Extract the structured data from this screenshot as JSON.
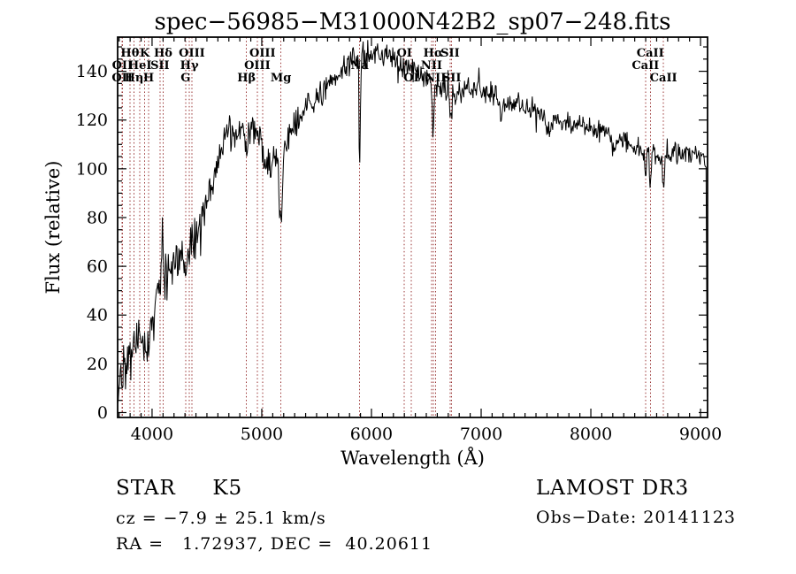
{
  "title": "spec−56985−M31000N42B2_sp07−248.fits",
  "footer": {
    "classification": "STAR     K5",
    "cz": "cz = −7.9 ± 25.1 km/s",
    "ra_dec": "RA =   1.72937, DEC =  40.20611",
    "survey": "LAMOST DR3",
    "obs_date": "Obs−Date: 20141123"
  },
  "chart_data": {
    "type": "line",
    "title": "spec−56985−M31000N42B2_sp07−248.fits",
    "xlabel": "Wavelength (Å)",
    "ylabel": "Flux (relative)",
    "xlim": [
      3686,
      9064
    ],
    "ylim": [
      -2,
      154
    ],
    "grid": false,
    "x_major_ticks": [
      4000,
      5000,
      6000,
      7000,
      8000,
      9000
    ],
    "x_tick_labels": [
      "4000",
      "5000",
      "6000",
      "7000",
      "8000",
      "9000"
    ],
    "x_minor_step": 100,
    "y_major_ticks": [
      0,
      20,
      40,
      60,
      80,
      100,
      120,
      140
    ],
    "y_tick_labels": [
      "0",
      "20",
      "40",
      "60",
      "80",
      "100",
      "120",
      "140"
    ],
    "y_minor_step": 5,
    "spectrum_color": "#000000",
    "line_marker_color": "#993333",
    "sample_step_angstrom": 6,
    "noise_seed": 42,
    "noise_regions": [
      [
        3950,
        8
      ],
      [
        4400,
        7
      ],
      [
        5200,
        5.5
      ],
      [
        6200,
        4.2
      ],
      [
        7200,
        3.8
      ],
      [
        10000,
        3.3
      ]
    ],
    "continuum_envelope": [
      [
        3686,
        3
      ],
      [
        3705,
        16
      ],
      [
        3740,
        20
      ],
      [
        3800,
        24
      ],
      [
        3860,
        28
      ],
      [
        3920,
        32
      ],
      [
        3980,
        36
      ],
      [
        4020,
        42
      ],
      [
        4060,
        50
      ],
      [
        4110,
        57
      ],
      [
        4160,
        60
      ],
      [
        4220,
        64
      ],
      [
        4280,
        66
      ],
      [
        4340,
        70
      ],
      [
        4400,
        73
      ],
      [
        4450,
        79
      ],
      [
        4500,
        87
      ],
      [
        4560,
        97
      ],
      [
        4620,
        107
      ],
      [
        4680,
        113
      ],
      [
        4740,
        114
      ],
      [
        4800,
        115
      ],
      [
        4860,
        116
      ],
      [
        4920,
        116
      ],
      [
        4980,
        113
      ],
      [
        5040,
        109
      ],
      [
        5100,
        106
      ],
      [
        5160,
        104
      ],
      [
        5220,
        110
      ],
      [
        5280,
        116
      ],
      [
        5340,
        120
      ],
      [
        5400,
        124
      ],
      [
        5480,
        128
      ],
      [
        5560,
        132
      ],
      [
        5650,
        136
      ],
      [
        5750,
        141
      ],
      [
        5850,
        145
      ],
      [
        5950,
        147
      ],
      [
        6050,
        148
      ],
      [
        6150,
        146
      ],
      [
        6250,
        144
      ],
      [
        6350,
        141
      ],
      [
        6450,
        139
      ],
      [
        6550,
        136
      ],
      [
        6650,
        133
      ],
      [
        6750,
        131
      ],
      [
        6850,
        132
      ],
      [
        6950,
        133
      ],
      [
        7050,
        131
      ],
      [
        7150,
        129
      ],
      [
        7250,
        128
      ],
      [
        7350,
        127
      ],
      [
        7450,
        125
      ],
      [
        7550,
        123
      ],
      [
        7650,
        121
      ],
      [
        7750,
        120
      ],
      [
        7850,
        118
      ],
      [
        7950,
        117
      ],
      [
        8050,
        116
      ],
      [
        8150,
        114
      ],
      [
        8250,
        112
      ],
      [
        8350,
        111
      ],
      [
        8450,
        108
      ],
      [
        8550,
        106
      ],
      [
        8650,
        105
      ],
      [
        8750,
        106
      ],
      [
        8850,
        107
      ],
      [
        8950,
        106
      ],
      [
        9030,
        105
      ],
      [
        9052,
        100
      ],
      [
        9057,
        40
      ],
      [
        9062,
        10
      ]
    ],
    "absorption_features": [
      {
        "center": 3933,
        "depth": 10,
        "sigma": 10
      },
      {
        "center": 3968,
        "depth": 9,
        "sigma": 10
      },
      {
        "center": 4101,
        "depth": 7,
        "sigma": 9
      },
      {
        "center": 4305,
        "depth": 15,
        "sigma": 16
      },
      {
        "center": 4340,
        "depth": 7,
        "sigma": 9
      },
      {
        "center": 4861,
        "depth": 13,
        "sigma": 8
      },
      {
        "center": 5065,
        "depth": 7,
        "sigma": 35
      },
      {
        "center": 5175,
        "depth": 28,
        "sigma": 13
      },
      {
        "center": 5893,
        "depth": 48,
        "sigma": 6
      },
      {
        "center": 6563,
        "depth": 20,
        "sigma": 8
      },
      {
        "center": 6717,
        "depth": 9,
        "sigma": 9
      },
      {
        "center": 6731,
        "depth": 9,
        "sigma": 9
      },
      {
        "center": 7190,
        "depth": 6,
        "sigma": 22
      },
      {
        "center": 7620,
        "depth": 6,
        "sigma": 25
      },
      {
        "center": 8205,
        "depth": 5,
        "sigma": 10
      },
      {
        "center": 8498,
        "depth": 11,
        "sigma": 7
      },
      {
        "center": 8542,
        "depth": 13,
        "sigma": 7
      },
      {
        "center": 8662,
        "depth": 12,
        "sigma": 7
      }
    ],
    "artifact_spike": {
      "center": 4095,
      "height": 32,
      "sigma": 4
    },
    "spectral_lines": [
      {
        "label": "OII",
        "wavelength": 3727,
        "row": 3
      },
      {
        "label": "OII",
        "wavelength": 3729,
        "row": 2
      },
      {
        "label": "Hθ",
        "wavelength": 3798,
        "row": 1
      },
      {
        "label": "Hη",
        "wavelength": 3835,
        "row": 3
      },
      {
        "label": "HeI",
        "wavelength": 3889,
        "row": 2
      },
      {
        "label": "K",
        "wavelength": 3933,
        "row": 1
      },
      {
        "label": "H",
        "wavelength": 3968,
        "row": 3
      },
      {
        "label": "SII",
        "wavelength": 4072,
        "row": 2
      },
      {
        "label": "Hδ",
        "wavelength": 4101,
        "row": 1
      },
      {
        "label": "G",
        "wavelength": 4305,
        "row": 3
      },
      {
        "label": "Hγ",
        "wavelength": 4340,
        "row": 2
      },
      {
        "label": "OIII",
        "wavelength": 4363,
        "row": 1
      },
      {
        "label": "Hβ",
        "wavelength": 4861,
        "row": 3
      },
      {
        "label": "OIII",
        "wavelength": 4959,
        "row": 2
      },
      {
        "label": "OIII",
        "wavelength": 5007,
        "row": 1
      },
      {
        "label": "Mg",
        "wavelength": 5175,
        "row": 3
      },
      {
        "label": "Na",
        "wavelength": 5893,
        "row": 2
      },
      {
        "label": "OI",
        "wavelength": 6300,
        "row": 1
      },
      {
        "label": "OI",
        "wavelength": 6363,
        "row": 3
      },
      {
        "label": "NII",
        "wavelength": 6548,
        "row": 2
      },
      {
        "label": "Hα",
        "wavelength": 6563,
        "row": 1
      },
      {
        "label": "NII",
        "wavelength": 6583,
        "row": 3
      },
      {
        "label": "SII",
        "wavelength": 6717,
        "row": 1
      },
      {
        "label": "SII",
        "wavelength": 6731,
        "row": 3
      },
      {
        "label": "CaII",
        "wavelength": 8498,
        "row": 2
      },
      {
        "label": "CaII",
        "wavelength": 8542,
        "row": 1
      },
      {
        "label": "CaII",
        "wavelength": 8662,
        "row": 3
      }
    ]
  }
}
